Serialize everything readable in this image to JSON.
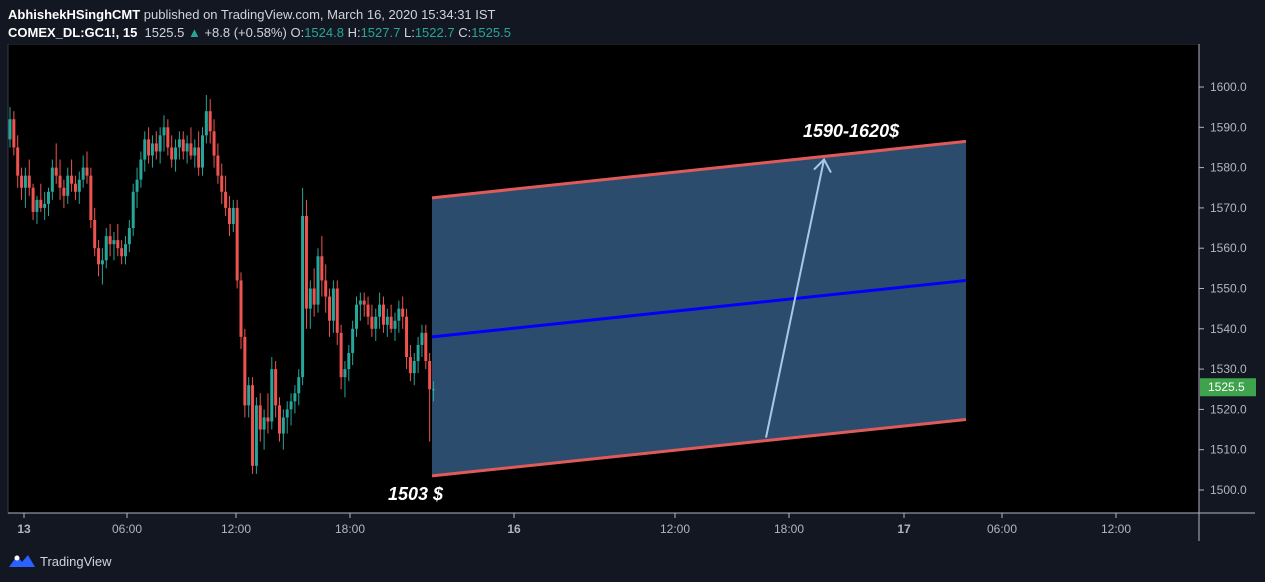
{
  "header": {
    "author": "AbhishekHSinghCMT",
    "published_text": "published on TradingView.com, March 16, 2020 15:34:31 IST",
    "symbol": "COMEX_DL:GC1!, 15",
    "last": "1525.5",
    "change": "+8.8 (+0.58%)",
    "o_label": "O:",
    "o_value": "1524.8",
    "h_label": "H:",
    "h_value": "1527.7",
    "l_label": "L:",
    "l_value": "1522.7",
    "c_label": "C:",
    "c_value": "1525.5"
  },
  "footer": {
    "brand": "TradingView"
  },
  "colors": {
    "up": "#26a69a",
    "down": "#ef5350",
    "channel_fill": "#4a7fb5",
    "channel_border": "#e05a5a",
    "midline": "#0000ff",
    "arrow": "#a8c8e8",
    "price_tag": "#3fa34d"
  },
  "chart_data": {
    "type": "candlestick",
    "symbol": "COMEX_DL:GC1!",
    "interval": "15",
    "x_ticks": [
      "13",
      "06:00",
      "12:00",
      "18:00",
      "16",
      "12:00",
      "18:00",
      "17",
      "06:00",
      "12:00"
    ],
    "y_ticks": [
      1500,
      1510,
      1520,
      1530,
      1540,
      1550,
      1560,
      1570,
      1580,
      1590,
      1600
    ],
    "ylim": [
      1497,
      1608
    ],
    "last_price": "1525.5",
    "annotations": [
      {
        "text": "1590-1620$",
        "type": "label"
      },
      {
        "text": "1503 $",
        "type": "label"
      }
    ],
    "channel": {
      "lower": [
        [
          0,
          1503.5
        ],
        [
          1,
          1517.5
        ]
      ],
      "upper": [
        [
          0,
          1572.5
        ],
        [
          1,
          1586.5
        ]
      ],
      "mid": [
        [
          0,
          1538
        ],
        [
          1,
          1552
        ]
      ]
    },
    "target_arrow": {
      "from": 1513,
      "to": 1582
    },
    "candles": [
      [
        1587,
        1595,
        1585,
        1592
      ],
      [
        1592,
        1594,
        1583,
        1585
      ],
      [
        1585,
        1588,
        1575,
        1578
      ],
      [
        1578,
        1580,
        1572,
        1575
      ],
      [
        1575,
        1580,
        1570,
        1578
      ],
      [
        1578,
        1582,
        1573,
        1575
      ],
      [
        1575,
        1576,
        1567,
        1569
      ],
      [
        1569,
        1573,
        1566,
        1572
      ],
      [
        1572,
        1576,
        1569,
        1570
      ],
      [
        1570,
        1574,
        1567,
        1571
      ],
      [
        1571,
        1575,
        1568,
        1574
      ],
      [
        1574,
        1582,
        1572,
        1580
      ],
      [
        1580,
        1586,
        1576,
        1578
      ],
      [
        1578,
        1582,
        1572,
        1575
      ],
      [
        1575,
        1577,
        1570,
        1573
      ],
      [
        1573,
        1580,
        1571,
        1578
      ],
      [
        1578,
        1582,
        1574,
        1576
      ],
      [
        1576,
        1578,
        1572,
        1574
      ],
      [
        1574,
        1579,
        1571,
        1577
      ],
      [
        1577,
        1583,
        1575,
        1580
      ],
      [
        1580,
        1584,
        1576,
        1578
      ],
      [
        1578,
        1580,
        1565,
        1567
      ],
      [
        1567,
        1570,
        1558,
        1560
      ],
      [
        1560,
        1562,
        1553,
        1556
      ],
      [
        1556,
        1560,
        1551,
        1557
      ],
      [
        1557,
        1565,
        1555,
        1563
      ],
      [
        1563,
        1566,
        1558,
        1561
      ],
      [
        1561,
        1564,
        1557,
        1562
      ],
      [
        1562,
        1566,
        1558,
        1560
      ],
      [
        1560,
        1562,
        1556,
        1558
      ],
      [
        1558,
        1563,
        1556,
        1561
      ],
      [
        1561,
        1567,
        1559,
        1565
      ],
      [
        1565,
        1576,
        1563,
        1574
      ],
      [
        1574,
        1580,
        1570,
        1577
      ],
      [
        1577,
        1584,
        1575,
        1582
      ],
      [
        1582,
        1589,
        1579,
        1587
      ],
      [
        1587,
        1590,
        1581,
        1583
      ],
      [
        1583,
        1588,
        1580,
        1586
      ],
      [
        1586,
        1589,
        1582,
        1584
      ],
      [
        1584,
        1590,
        1581,
        1588
      ],
      [
        1588,
        1593,
        1584,
        1590
      ],
      [
        1590,
        1592,
        1583,
        1585
      ],
      [
        1585,
        1588,
        1580,
        1582
      ],
      [
        1582,
        1587,
        1579,
        1585
      ],
      [
        1585,
        1589,
        1582,
        1587
      ],
      [
        1587,
        1589,
        1582,
        1584
      ],
      [
        1584,
        1588,
        1581,
        1586
      ],
      [
        1586,
        1590,
        1582,
        1583
      ],
      [
        1583,
        1587,
        1580,
        1585
      ],
      [
        1585,
        1589,
        1578,
        1580
      ],
      [
        1580,
        1590,
        1578,
        1588
      ],
      [
        1588,
        1598,
        1586,
        1594
      ],
      [
        1594,
        1597,
        1586,
        1589
      ],
      [
        1589,
        1592,
        1580,
        1583
      ],
      [
        1583,
        1586,
        1576,
        1578
      ],
      [
        1578,
        1581,
        1571,
        1574
      ],
      [
        1574,
        1578,
        1568,
        1570
      ],
      [
        1570,
        1573,
        1563,
        1566
      ],
      [
        1566,
        1572,
        1564,
        1570
      ],
      [
        1570,
        1572,
        1550,
        1552
      ],
      [
        1552,
        1554,
        1535,
        1538
      ],
      [
        1538,
        1540,
        1518,
        1521
      ],
      [
        1521,
        1528,
        1518,
        1526
      ],
      [
        1526,
        1528,
        1504,
        1506
      ],
      [
        1506,
        1523,
        1504,
        1521
      ],
      [
        1521,
        1524,
        1512,
        1515
      ],
      [
        1515,
        1520,
        1510,
        1518
      ],
      [
        1518,
        1524,
        1514,
        1517
      ],
      [
        1517,
        1533,
        1515,
        1530
      ],
      [
        1530,
        1532,
        1518,
        1521
      ],
      [
        1521,
        1523,
        1512,
        1514
      ],
      [
        1514,
        1520,
        1510,
        1518
      ],
      [
        1518,
        1522,
        1514,
        1520
      ],
      [
        1520,
        1524,
        1516,
        1522
      ],
      [
        1522,
        1526,
        1519,
        1524
      ],
      [
        1524,
        1530,
        1521,
        1528
      ],
      [
        1528,
        1575,
        1526,
        1568
      ],
      [
        1568,
        1572,
        1540,
        1545
      ],
      [
        1545,
        1552,
        1540,
        1550
      ],
      [
        1550,
        1555,
        1543,
        1546
      ],
      [
        1546,
        1560,
        1544,
        1558
      ],
      [
        1558,
        1563,
        1548,
        1552
      ],
      [
        1552,
        1556,
        1544,
        1548
      ],
      [
        1548,
        1550,
        1538,
        1542
      ],
      [
        1542,
        1552,
        1539,
        1550
      ],
      [
        1550,
        1552,
        1536,
        1539
      ],
      [
        1539,
        1541,
        1525,
        1528
      ],
      [
        1528,
        1532,
        1523,
        1530
      ],
      [
        1530,
        1536,
        1527,
        1534
      ],
      [
        1534,
        1542,
        1531,
        1540
      ],
      [
        1540,
        1548,
        1538,
        1546
      ],
      [
        1546,
        1549,
        1542,
        1547
      ],
      [
        1547,
        1549,
        1543,
        1546
      ],
      [
        1546,
        1548,
        1541,
        1543
      ],
      [
        1543,
        1546,
        1538,
        1540
      ],
      [
        1540,
        1545,
        1537,
        1543
      ],
      [
        1543,
        1549,
        1540,
        1546
      ],
      [
        1546,
        1548,
        1539,
        1541
      ],
      [
        1541,
        1545,
        1538,
        1543
      ],
      [
        1543,
        1546,
        1539,
        1540
      ],
      [
        1540,
        1544,
        1537,
        1542
      ],
      [
        1542,
        1547,
        1539,
        1545
      ],
      [
        1545,
        1548,
        1540,
        1543
      ],
      [
        1543,
        1545,
        1530,
        1533
      ],
      [
        1533,
        1536,
        1527,
        1529
      ],
      [
        1529,
        1534,
        1526,
        1532
      ],
      [
        1532,
        1538,
        1529,
        1536
      ],
      [
        1536,
        1541,
        1533,
        1539
      ],
      [
        1539,
        1541,
        1530,
        1532
      ],
      [
        1532,
        1534,
        1512,
        1525
      ],
      [
        1525,
        1527,
        1522,
        1525
      ]
    ]
  }
}
